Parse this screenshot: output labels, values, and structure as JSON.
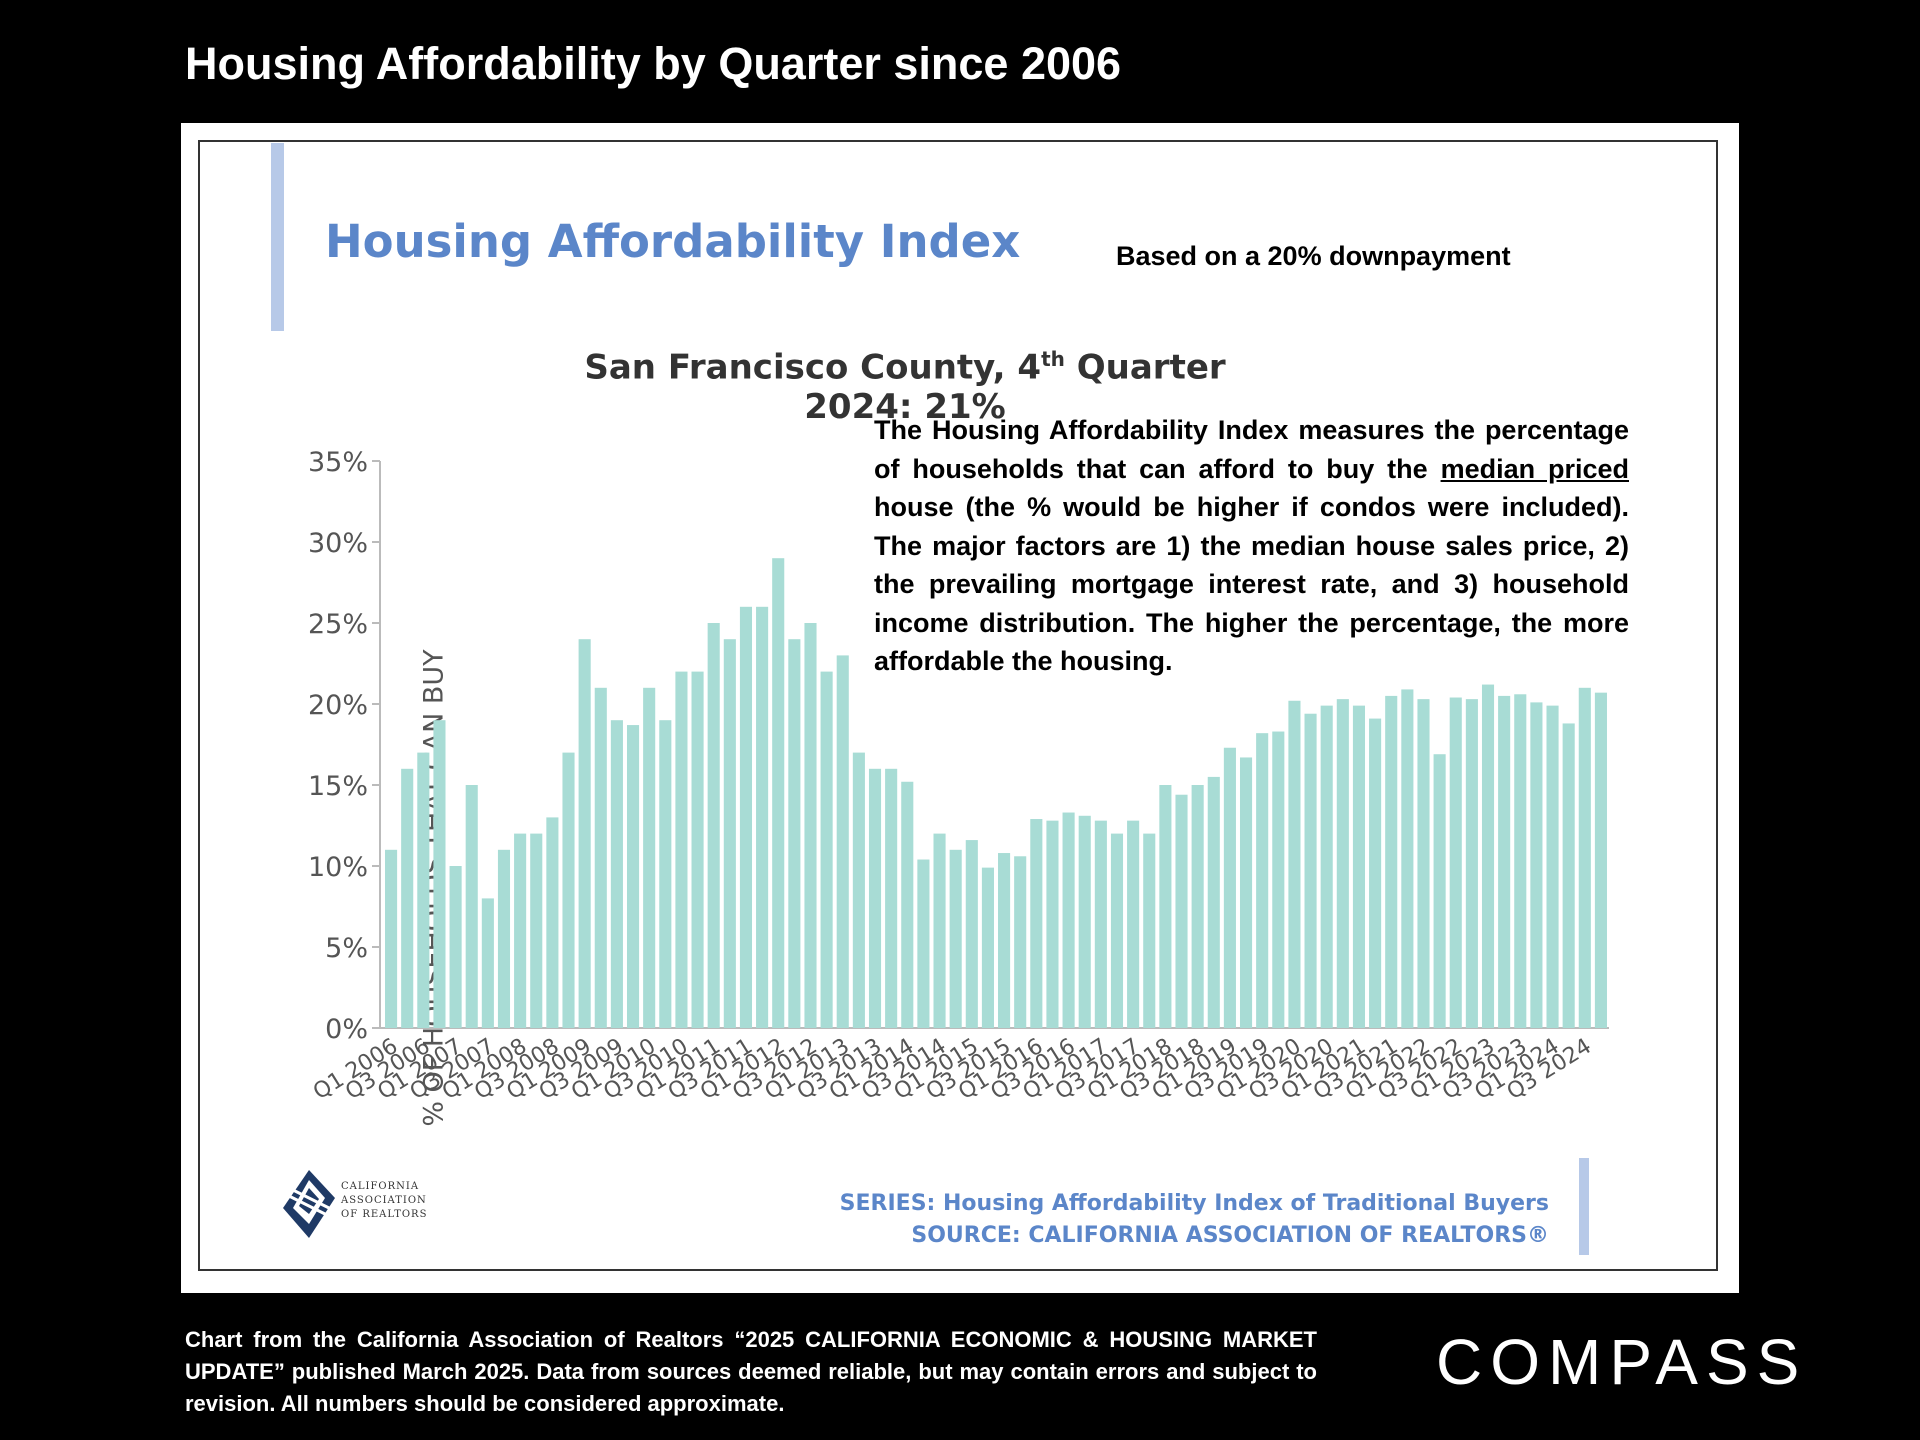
{
  "page": {
    "title": "Housing Affordability by Quarter since 2006",
    "footnote": "Chart from the California Association of Realtors “2025 CALIFORNIA ECONOMIC & HOUSING MARKET UPDATE” published March 2025. Data from sources deemed reliable, but may contain errors and subject to revision. All numbers should be considered approximate.",
    "brand": "COMPASS"
  },
  "panel": {
    "hai_title": "Housing Affordability Index",
    "downpayment_note": "Based on a 20% downpayment",
    "county_title_pre": "San Francisco County, 4",
    "county_title_sup": "th",
    "county_title_post": " Quarter 2024: 21%",
    "description_p1": "The Housing Affordability Index measures the percentage of households that can afford to buy the ",
    "description_underlined": "median priced ",
    "description_p2": "house (the % would be higher if condos were included). The major factors are 1) the median house sales price, 2) the prevailing mortgage interest rate, and 3) household income distribution. The higher the percentage, the more affordable the housing.",
    "series_line": "SERIES: Housing Affordability Index of Traditional Buyers",
    "source_line": "SOURCE:  CALIFORNIA ASSOCIATION OF REALTORS®",
    "logo_text": "CALIFORNIA\nASSOCIATION\nOF REALTORS"
  },
  "chart_data": {
    "type": "bar",
    "ylabel": "% OF HOUSEHOLDS THAT CAN BUY",
    "ylim": [
      0,
      35
    ],
    "yticks": [
      "0%",
      "5%",
      "10%",
      "15%",
      "20%",
      "25%",
      "30%",
      "35%"
    ],
    "bar_color": "#a8dcd5",
    "categories": [
      "Q1 2006",
      "Q2 2006",
      "Q3 2006",
      "Q4 2006",
      "Q1 2007",
      "Q2 2007",
      "Q3 2007",
      "Q4 2007",
      "Q1 2008",
      "Q2 2008",
      "Q3 2008",
      "Q4 2008",
      "Q1 2009",
      "Q2 2009",
      "Q3 2009",
      "Q4 2009",
      "Q1 2010",
      "Q2 2010",
      "Q3 2010",
      "Q4 2010",
      "Q1 2011",
      "Q2 2011",
      "Q3 2011",
      "Q4 2011",
      "Q1 2012",
      "Q2 2012",
      "Q3 2012",
      "Q4 2012",
      "Q1 2013",
      "Q2 2013",
      "Q3 2013",
      "Q4 2013",
      "Q1 2014",
      "Q2 2014",
      "Q3 2014",
      "Q4 2014",
      "Q1 2015",
      "Q2 2015",
      "Q3 2015",
      "Q4 2015",
      "Q1 2016",
      "Q2 2016",
      "Q3 2016",
      "Q4 2016",
      "Q1 2017",
      "Q2 2017",
      "Q3 2017",
      "Q4 2017",
      "Q1 2018",
      "Q2 2018",
      "Q3 2018",
      "Q4 2018",
      "Q1 2019",
      "Q2 2019",
      "Q3 2019",
      "Q4 2019",
      "Q1 2020",
      "Q2 2020",
      "Q3 2020",
      "Q4 2020",
      "Q1 2021",
      "Q2 2021",
      "Q3 2021",
      "Q4 2021",
      "Q1 2022",
      "Q2 2022",
      "Q3 2022",
      "Q4 2022",
      "Q1 2023",
      "Q2 2023",
      "Q3 2023",
      "Q4 2023",
      "Q1 2024",
      "Q2 2024",
      "Q3 2024",
      "Q4 2024"
    ],
    "tick_labels": [
      "Q1 2006",
      "Q3 2006",
      "Q1 2007",
      "Q3 2007",
      "Q1 2008",
      "Q3 2008",
      "Q1 2009",
      "Q3 2009",
      "Q1 2010",
      "Q3 2010",
      "Q1 2011",
      "Q3 2011",
      "Q1 2012",
      "Q3 2012",
      "Q1 2013",
      "Q3 2013",
      "Q1 2014",
      "Q3 2014",
      "Q1 2015",
      "Q3 2015",
      "Q1 2016",
      "Q3 2016",
      "Q1 2017",
      "Q3 2017",
      "Q1 2018",
      "Q3 2018",
      "Q1 2019",
      "Q3 2019",
      "Q1 2020",
      "Q3 2020",
      "Q1 2021",
      "Q3 2021",
      "Q1 2022",
      "Q3 2022",
      "Q1 2023",
      "Q3 2023",
      "Q1 2024",
      "Q3 2024"
    ],
    "values": [
      11,
      16,
      17,
      19,
      10,
      15,
      8,
      11,
      12,
      12,
      13,
      17,
      24,
      21,
      19,
      18.7,
      21,
      19,
      22,
      22,
      25,
      24,
      26,
      26,
      29,
      24,
      25,
      22,
      23,
      17,
      16,
      16,
      15.2,
      10.4,
      12,
      11,
      11.6,
      9.9,
      10.8,
      10.6,
      12.9,
      12.8,
      13.3,
      13.1,
      12.8,
      12,
      12.8,
      12,
      15,
      14.4,
      15,
      15.5,
      17.3,
      16.7,
      18.2,
      18.3,
      20.2,
      19.4,
      19.9,
      20.3,
      19.9,
      19.1,
      20.5,
      20.9,
      20.3,
      16.9,
      20.4,
      20.3,
      21.2,
      20.5,
      20.6,
      20.1,
      19.9,
      18.8,
      21,
      20.7
    ]
  }
}
